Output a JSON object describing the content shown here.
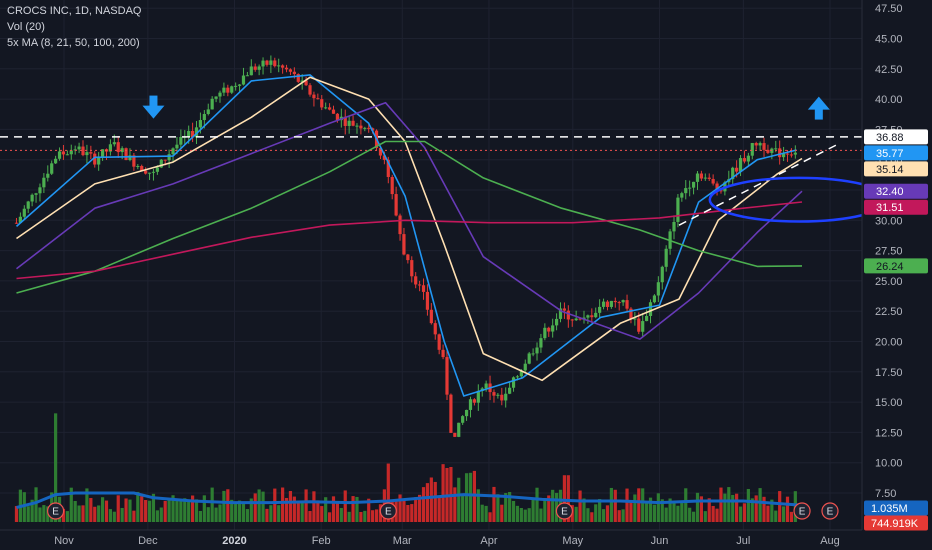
{
  "header": {
    "symbol": "CROCS INC, 1D, NASDAQ",
    "volume": "Vol (20)",
    "ma": "5x MA (8, 21, 50, 100, 200)"
  },
  "colors": {
    "background": "#131722",
    "up": "#26a69a",
    "down": "#ef5350",
    "candle_up": "#4caf50",
    "candle_down": "#e53935",
    "ma8": "#2196f3",
    "ma21": "#ffe0b2",
    "ma50": "#673ab7",
    "ma100": "#4caf50",
    "ma200": "#c2185b",
    "vol_ma": "#1565c0",
    "arrow": "#2196f3"
  },
  "chart_data": {
    "type": "candlestick",
    "y_axis": {
      "ticks": [
        "47.50",
        "45.00",
        "42.50",
        "40.00",
        "37.50",
        "35.00",
        "32.50",
        "30.00",
        "27.50",
        "25.00",
        "22.50",
        "20.00",
        "17.50",
        "15.00",
        "12.50",
        "10.00",
        "7.50"
      ],
      "range": [
        5.5,
        48.5
      ]
    },
    "x_axis": {
      "ticks": [
        {
          "label": "Nov",
          "bold": false
        },
        {
          "label": "Dec",
          "bold": false
        },
        {
          "label": "2020",
          "bold": true
        },
        {
          "label": "Feb",
          "bold": false
        },
        {
          "label": "Mar",
          "bold": false
        },
        {
          "label": "Apr",
          "bold": false
        },
        {
          "label": "May",
          "bold": false
        },
        {
          "label": "Jun",
          "bold": false
        },
        {
          "label": "Jul",
          "bold": false
        },
        {
          "label": "Aug",
          "bold": false
        }
      ]
    },
    "price_points": [
      [
        "2019-10-15",
        29.8
      ],
      [
        "2019-10-22",
        32.5
      ],
      [
        "2019-10-29",
        35.2
      ],
      [
        "2019-11-05",
        36.0
      ],
      [
        "2019-11-12",
        35.0
      ],
      [
        "2019-11-19",
        36.2
      ],
      [
        "2019-11-26",
        34.8
      ],
      [
        "2019-12-03",
        33.8
      ],
      [
        "2019-12-10",
        36.0
      ],
      [
        "2019-12-17",
        37.2
      ],
      [
        "2019-12-24",
        40.0
      ],
      [
        "2019-12-31",
        41.0
      ],
      [
        "2020-01-07",
        42.5
      ],
      [
        "2020-01-14",
        43.0
      ],
      [
        "2020-01-21",
        42.2
      ],
      [
        "2020-01-28",
        40.5
      ],
      [
        "2020-02-04",
        39.0
      ],
      [
        "2020-02-11",
        38.0
      ],
      [
        "2020-02-18",
        37.8
      ],
      [
        "2020-02-24",
        34.5
      ],
      [
        "2020-03-02",
        27.0
      ],
      [
        "2020-03-09",
        23.5
      ],
      [
        "2020-03-16",
        18.0
      ],
      [
        "2020-03-19",
        11.5
      ],
      [
        "2020-03-23",
        14.0
      ],
      [
        "2020-03-30",
        16.5
      ],
      [
        "2020-04-06",
        15.0
      ],
      [
        "2020-04-13",
        18.0
      ],
      [
        "2020-04-20",
        20.5
      ],
      [
        "2020-04-27",
        22.5
      ],
      [
        "2020-05-04",
        21.5
      ],
      [
        "2020-05-11",
        23.0
      ],
      [
        "2020-05-18",
        23.5
      ],
      [
        "2020-05-25",
        21.0
      ],
      [
        "2020-06-01",
        25.0
      ],
      [
        "2020-06-08",
        32.0
      ],
      [
        "2020-06-15",
        34.0
      ],
      [
        "2020-06-22",
        32.5
      ],
      [
        "2020-06-29",
        34.5
      ],
      [
        "2020-07-06",
        36.5
      ],
      [
        "2020-07-13",
        35.5
      ],
      [
        "2020-07-20",
        35.8
      ]
    ],
    "moving_averages": [
      {
        "name": "MA 8",
        "color": "#2196f3",
        "points": [
          [
            "2019-10-15",
            29.5
          ],
          [
            "2019-11-12",
            35.2
          ],
          [
            "2019-12-10",
            35.3
          ],
          [
            "2020-01-07",
            41.5
          ],
          [
            "2020-01-28",
            42.0
          ],
          [
            "2020-02-18",
            38.0
          ],
          [
            "2020-03-02",
            32.0
          ],
          [
            "2020-03-16",
            20.0
          ],
          [
            "2020-03-23",
            15.5
          ],
          [
            "2020-04-13",
            17.0
          ],
          [
            "2020-05-11",
            22.0
          ],
          [
            "2020-06-01",
            23.0
          ],
          [
            "2020-06-15",
            31.5
          ],
          [
            "2020-07-06",
            35.0
          ],
          [
            "2020-07-20",
            35.8
          ]
        ]
      },
      {
        "name": "MA 21",
        "color": "#ffe0b2",
        "points": [
          [
            "2019-10-15",
            28.5
          ],
          [
            "2019-11-12",
            33.0
          ],
          [
            "2019-12-10",
            34.8
          ],
          [
            "2020-01-07",
            38.5
          ],
          [
            "2020-01-28",
            41.8
          ],
          [
            "2020-02-18",
            40.0
          ],
          [
            "2020-03-02",
            36.5
          ],
          [
            "2020-03-16",
            28.0
          ],
          [
            "2020-03-30",
            19.0
          ],
          [
            "2020-04-20",
            16.8
          ],
          [
            "2020-05-18",
            21.5
          ],
          [
            "2020-06-08",
            23.5
          ],
          [
            "2020-06-22",
            30.0
          ],
          [
            "2020-07-13",
            33.8
          ],
          [
            "2020-07-22",
            35.1
          ]
        ]
      },
      {
        "name": "MA 50",
        "color": "#673ab7",
        "points": [
          [
            "2019-10-15",
            26.0
          ],
          [
            "2019-11-12",
            31.0
          ],
          [
            "2019-12-10",
            33.0
          ],
          [
            "2020-01-07",
            35.5
          ],
          [
            "2020-02-04",
            38.0
          ],
          [
            "2020-02-24",
            39.7
          ],
          [
            "2020-03-09",
            36.0
          ],
          [
            "2020-03-30",
            27.0
          ],
          [
            "2020-04-27",
            22.5
          ],
          [
            "2020-05-25",
            20.2
          ],
          [
            "2020-06-15",
            24.0
          ],
          [
            "2020-07-06",
            29.0
          ],
          [
            "2020-07-22",
            32.4
          ]
        ]
      },
      {
        "name": "MA 100",
        "color": "#4caf50",
        "points": [
          [
            "2019-10-15",
            24.0
          ],
          [
            "2019-11-12",
            25.8
          ],
          [
            "2019-12-10",
            28.5
          ],
          [
            "2020-01-07",
            31.0
          ],
          [
            "2020-02-04",
            34.0
          ],
          [
            "2020-02-24",
            36.5
          ],
          [
            "2020-03-09",
            36.5
          ],
          [
            "2020-03-30",
            33.5
          ],
          [
            "2020-04-27",
            31.0
          ],
          [
            "2020-05-25",
            29.2
          ],
          [
            "2020-06-15",
            27.5
          ],
          [
            "2020-07-06",
            26.2
          ],
          [
            "2020-07-22",
            26.24
          ]
        ]
      },
      {
        "name": "MA 200",
        "color": "#c2185b",
        "points": [
          [
            "2019-10-15",
            25.2
          ],
          [
            "2019-11-12",
            25.8
          ],
          [
            "2019-12-10",
            27.2
          ],
          [
            "2020-01-07",
            28.6
          ],
          [
            "2020-02-04",
            29.6
          ],
          [
            "2020-03-02",
            30.0
          ],
          [
            "2020-04-01",
            29.8
          ],
          [
            "2020-05-01",
            29.8
          ],
          [
            "2020-06-01",
            30.2
          ],
          [
            "2020-07-01",
            31.0
          ],
          [
            "2020-07-22",
            31.51
          ]
        ]
      }
    ],
    "volume_profile": [
      [
        "2019-10-15",
        0.9
      ],
      [
        "2019-10-22",
        1.2
      ],
      [
        "2019-10-29",
        1.7
      ],
      [
        "2019-11-05",
        1.8
      ],
      [
        "2019-11-12",
        1.8
      ],
      [
        "2019-11-19",
        1.8
      ],
      [
        "2019-11-26",
        1.8
      ],
      [
        "2019-12-03",
        1.5
      ],
      [
        "2019-12-10",
        1.4
      ],
      [
        "2019-12-17",
        1.3
      ],
      [
        "2019-12-31",
        1.2
      ],
      [
        "2020-01-14",
        1.2
      ],
      [
        "2020-01-28",
        1.25
      ],
      [
        "2020-02-11",
        1.2
      ],
      [
        "2020-02-25",
        1.3
      ],
      [
        "2020-03-09",
        1.5
      ],
      [
        "2020-03-23",
        1.7
      ],
      [
        "2020-04-06",
        1.6
      ],
      [
        "2020-04-20",
        1.4
      ],
      [
        "2020-05-04",
        1.3
      ],
      [
        "2020-05-18",
        1.3
      ],
      [
        "2020-06-01",
        1.2
      ],
      [
        "2020-06-15",
        1.3
      ],
      [
        "2020-07-01",
        1.3
      ],
      [
        "2020-07-22",
        1.04
      ]
    ],
    "volume_ylim": [
      0,
      8
    ],
    "horizontal_lines": [
      {
        "value": 36.88,
        "style": "dashed",
        "color": "#ffffff"
      },
      {
        "value": 35.77,
        "style": "dotted",
        "color": "#ef5350"
      }
    ],
    "trendline": {
      "from": [
        "2020-06-08",
        29.6
      ],
      "to": [
        "2020-08-04",
        36.3
      ],
      "style": "dashed",
      "color": "#ffffff"
    },
    "annotations": {
      "arrows_down": [
        [
          "2019-12-03",
          39.3
        ]
      ],
      "arrows_up": [
        [
          "2020-07-28",
          39.3
        ]
      ],
      "ellipse": {
        "center": [
          "2020-07-21",
          31.7
        ],
        "rx_days": 10,
        "ry_value": 1.8,
        "color": "#1e40ff"
      },
      "earnings_markers": [
        {
          "date": "2019-10-29",
          "label": "E"
        },
        {
          "date": "2020-02-25",
          "label": "E"
        },
        {
          "date": "2020-04-28",
          "label": "E"
        },
        {
          "date": "2020-07-22",
          "label": "E"
        },
        {
          "date": "2020-08-01",
          "label": "E"
        }
      ]
    },
    "price_badges": [
      {
        "label": "36.88",
        "value": 36.88,
        "bg": "#ffffff",
        "fg": "#131722"
      },
      {
        "label": "35.77",
        "value": 35.77,
        "bg": "#2196f3",
        "fg": "#ffffff"
      },
      {
        "label": "35.14",
        "value": 35.14,
        "bg": "#ffe0b2",
        "fg": "#131722"
      },
      {
        "label": "32.40",
        "value": 32.4,
        "bg": "#673ab7",
        "fg": "#ffffff"
      },
      {
        "label": "31.51",
        "value": 31.51,
        "bg": "#c2185b",
        "fg": "#ffffff"
      },
      {
        "label": "26.24",
        "value": 26.24,
        "bg": "#4caf50",
        "fg": "#131722"
      }
    ],
    "volume_badges": [
      {
        "label": "1.035M",
        "bg": "#1565c0",
        "fg": "#ffffff"
      },
      {
        "label": "744.919K",
        "bg": "#e53935",
        "fg": "#ffffff"
      }
    ]
  }
}
